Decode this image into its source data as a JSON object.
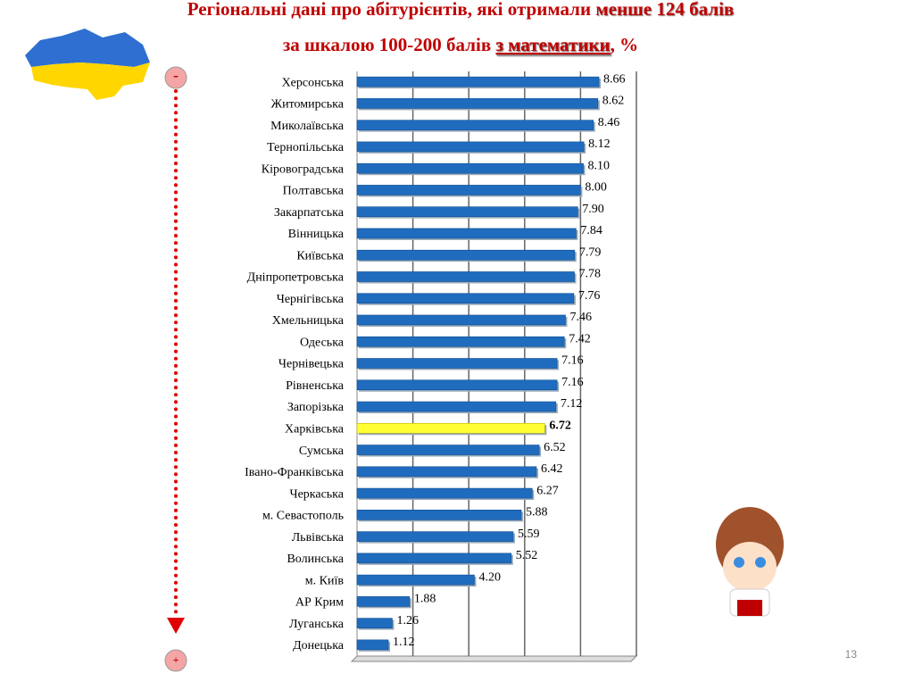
{
  "chart_data": {
    "type": "bar",
    "orientation": "horizontal",
    "title": [
      "Регіональні дані про абітурієнтів, які отримали ",
      "менше 124 балів",
      "за шкалою 100-200 балів ",
      "з математики",
      ", %"
    ],
    "categories": [
      "Херсонська",
      "Житомирська",
      "Миколаївська",
      "Тернопільська",
      "Кіровоградська",
      "Полтавська",
      "Закарпатська",
      "Вінницька",
      "Київська",
      "Дніпропетровська",
      "Чернігівська",
      "Хмельницька",
      "Одеська",
      "Чернівецька",
      "Рівненська",
      "Запорізька",
      "Харківська",
      "Сумська",
      "Івано-Франківська",
      "Черкаська",
      "м. Севастополь",
      "Львівська",
      "Волинська",
      "м. Київ",
      "АР Крим",
      "Луганська",
      "Донецька"
    ],
    "values": [
      8.66,
      8.62,
      8.46,
      8.12,
      8.1,
      8.0,
      7.9,
      7.84,
      7.79,
      7.78,
      7.76,
      7.46,
      7.42,
      7.16,
      7.16,
      7.12,
      6.72,
      6.52,
      6.42,
      6.27,
      5.88,
      5.59,
      5.52,
      4.2,
      1.88,
      1.26,
      1.12
    ],
    "value_labels": [
      "8.66",
      "8.62",
      "8.46",
      "8.12",
      "8.10",
      "8.00",
      "7.90",
      "7.84",
      "7.79",
      "7.78",
      "7.76",
      "7.46",
      "7.42",
      "7.16",
      "7.16",
      "7.12",
      "6.72",
      "6.52",
      "6.42",
      "6.27",
      "5.88",
      "5.59",
      "5.52",
      "4.20",
      "1.88",
      "1.26",
      "1.12"
    ],
    "color": "#1f6cbf",
    "highlight_index": 16,
    "highlight_color": "#ffff33",
    "xlim": [
      0,
      10
    ],
    "xticks": [
      0,
      2,
      4,
      6,
      8,
      10
    ],
    "grid": true
  },
  "slide": {
    "top_marker": "-",
    "bottom_marker": "+",
    "page_number": "13"
  }
}
